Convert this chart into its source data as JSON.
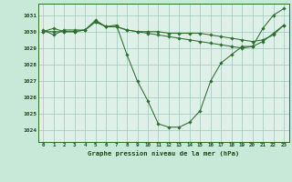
{
  "title": "Graphe pression niveau de la mer (hPa)",
  "fig_bg_color": "#c8e8d8",
  "plot_bg_color": "#dff0e8",
  "grid_color": "#99ccbb",
  "line_color": "#2d6e2d",
  "xlim": [
    -0.5,
    23.5
  ],
  "ylim": [
    1023.3,
    1031.7
  ],
  "yticks": [
    1024,
    1025,
    1026,
    1027,
    1028,
    1029,
    1030,
    1031
  ],
  "xticks": [
    0,
    1,
    2,
    3,
    4,
    5,
    6,
    7,
    8,
    9,
    10,
    11,
    12,
    13,
    14,
    15,
    16,
    17,
    18,
    19,
    20,
    21,
    22,
    23
  ],
  "series": [
    [
      1030.1,
      1029.8,
      1030.1,
      1030.1,
      1030.1,
      1030.6,
      1030.3,
      1030.4,
      1028.6,
      1027.0,
      1025.8,
      1024.4,
      1024.2,
      1024.2,
      1024.5,
      1025.2,
      1027.0,
      1028.1,
      1028.6,
      1029.1,
      1029.1,
      1030.2,
      1031.0,
      1031.4
    ],
    [
      1030.0,
      1030.2,
      1030.0,
      1030.0,
      1030.1,
      1030.7,
      1030.3,
      1030.3,
      1030.1,
      1030.0,
      1030.0,
      1030.0,
      1029.9,
      1029.9,
      1029.9,
      1029.9,
      1029.8,
      1029.7,
      1029.6,
      1029.5,
      1029.4,
      1029.5,
      1029.8,
      1030.4
    ],
    [
      1030.0,
      1030.0,
      1030.0,
      1030.0,
      1030.1,
      1030.6,
      1030.3,
      1030.3,
      1030.1,
      1030.0,
      1029.9,
      1029.8,
      1029.7,
      1029.6,
      1029.5,
      1029.4,
      1029.3,
      1029.2,
      1029.1,
      1029.0,
      1029.1,
      1029.4,
      1029.9,
      1030.4
    ]
  ]
}
